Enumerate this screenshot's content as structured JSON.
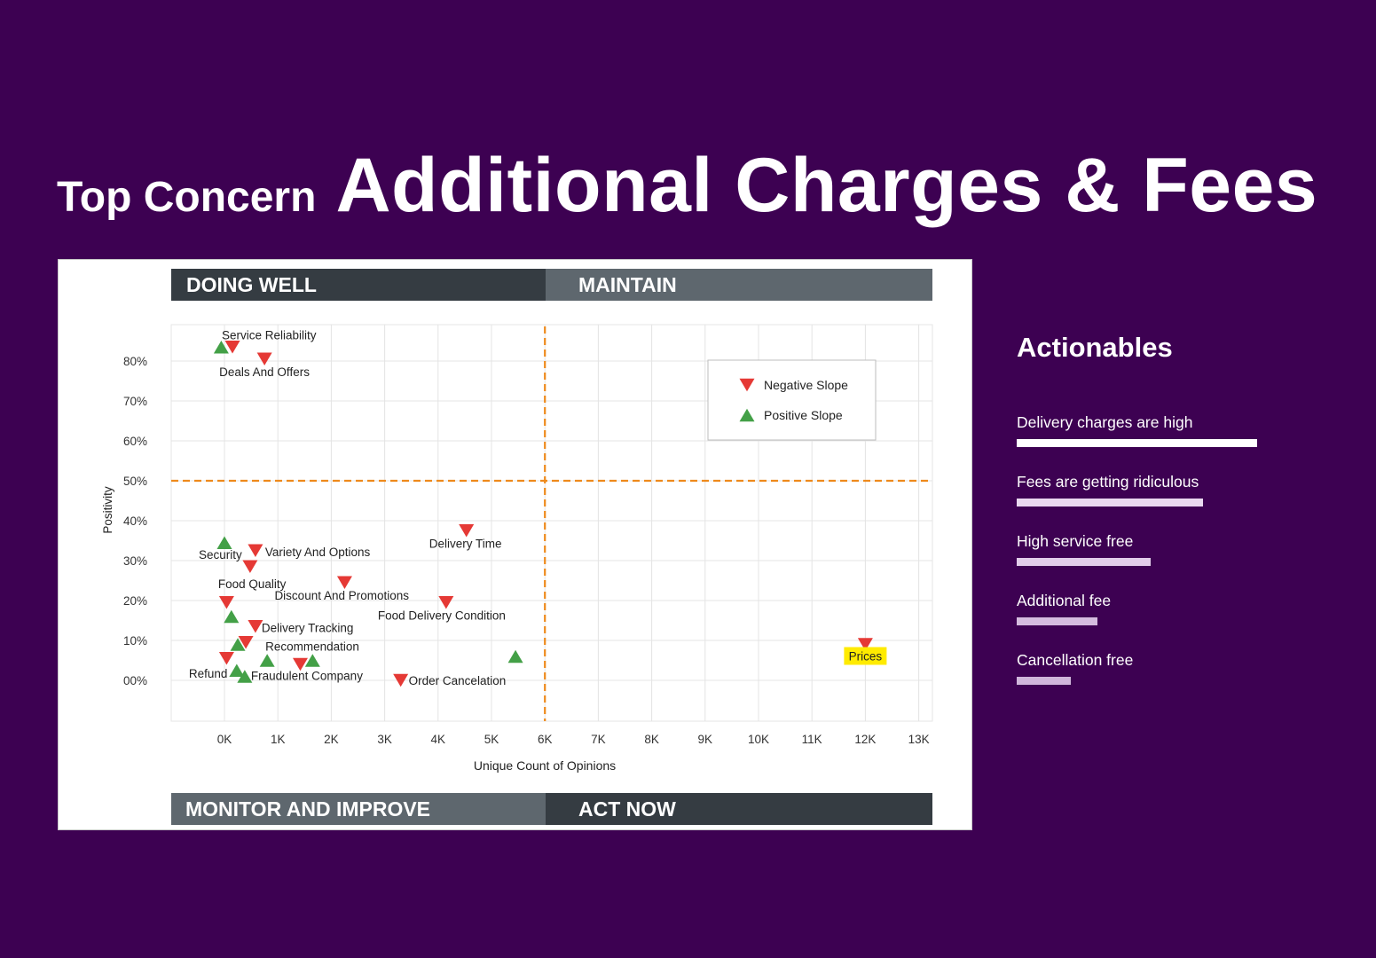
{
  "title": {
    "prefix": "Top Concern",
    "main": "Additional Charges & Fees"
  },
  "quadrants": {
    "top_left": "DOING WELL",
    "top_right": "MAINTAIN",
    "bottom_left": "MONITOR AND IMPROVE",
    "bottom_right": "ACT NOW"
  },
  "actionables": {
    "title": "Actionables",
    "items": [
      {
        "label": "Delivery charges are high",
        "level": 1.0,
        "color": "#ffffff"
      },
      {
        "label": "Fees are getting ridiculous",
        "level": 0.776,
        "color": "#ead9f0"
      },
      {
        "label": "High service free",
        "level": 0.557,
        "color": "#e2cdea"
      },
      {
        "label": "Additional fee",
        "level": 0.336,
        "color": "#d5bcdf"
      },
      {
        "label": "Cancellation free",
        "level": 0.225,
        "color": "#d0b6db"
      }
    ]
  },
  "chart_data": {
    "type": "scatter",
    "xlabel": "Unique Count of Opinions",
    "ylabel": "Positivity",
    "xlim": [
      -1000,
      13000
    ],
    "ylim": [
      -10,
      90
    ],
    "x_ticks": [
      0,
      1000,
      2000,
      3000,
      4000,
      5000,
      6000,
      7000,
      8000,
      9000,
      10000,
      11000,
      12000,
      13000
    ],
    "x_tick_labels": [
      "0K",
      "1K",
      "2K",
      "3K",
      "4K",
      "5K",
      "6K",
      "7K",
      "8K",
      "9K",
      "10K",
      "11K",
      "12K",
      "13K"
    ],
    "y_ticks": [
      0,
      10,
      20,
      30,
      40,
      50,
      60,
      70,
      80
    ],
    "y_tick_labels": [
      "00%",
      "10%",
      "20%",
      "30%",
      "40%",
      "50%",
      "60%",
      "70%",
      "80%"
    ],
    "reference_lines": {
      "x": 6000,
      "y": 50,
      "color": "#ee8a1c"
    },
    "grid": true,
    "legend": {
      "position": "top-right",
      "entries": [
        {
          "name": "Negative Slope",
          "marker": "triangle-down",
          "color": "#e53935"
        },
        {
          "name": "Positive Slope",
          "marker": "triangle-up",
          "color": "#43a047"
        }
      ]
    },
    "series": [
      {
        "name": "Negative Slope",
        "color": "#e53935",
        "points": [
          {
            "x": 150,
            "y": 83.5,
            "label": "Service Reliability"
          },
          {
            "x": 750,
            "y": 80.5,
            "label": "Deals And Offers"
          },
          {
            "x": 580,
            "y": 32.5,
            "label": "Variety And Options"
          },
          {
            "x": 480,
            "y": 28.5,
            "label": "Food Quality"
          },
          {
            "x": 4530,
            "y": 37.5,
            "label": "Delivery Time"
          },
          {
            "x": 2250,
            "y": 24.5,
            "label": "Discount And Promotions"
          },
          {
            "x": 40,
            "y": 19.5,
            "label": ""
          },
          {
            "x": 4150,
            "y": 19.5,
            "label": "Food Delivery Condition"
          },
          {
            "x": 580,
            "y": 13.5,
            "label": "Delivery Tracking"
          },
          {
            "x": 400,
            "y": 9.5,
            "label": "Recommendation"
          },
          {
            "x": 40,
            "y": 5.5,
            "label": ""
          },
          {
            "x": 1420,
            "y": 4.0,
            "label": ""
          },
          {
            "x": 3300,
            "y": 0.0,
            "label": "Order Cancelation"
          },
          {
            "x": 12000,
            "y": 9.0,
            "label": "Prices",
            "highlight": true
          }
        ]
      },
      {
        "name": "Positive Slope",
        "color": "#43a047",
        "points": [
          {
            "x": -60,
            "y": 83.5,
            "label": ""
          },
          {
            "x": 0,
            "y": 34.5,
            "label": "Security"
          },
          {
            "x": 130,
            "y": 16.0,
            "label": ""
          },
          {
            "x": 250,
            "y": 9.0,
            "label": ""
          },
          {
            "x": 800,
            "y": 5.0,
            "label": ""
          },
          {
            "x": 1650,
            "y": 5.0,
            "label": ""
          },
          {
            "x": 230,
            "y": 2.5,
            "label": "Refund"
          },
          {
            "x": 380,
            "y": 1.0,
            "label": "Fraudulent Company"
          },
          {
            "x": 5450,
            "y": 6.0,
            "label": ""
          }
        ]
      }
    ]
  }
}
